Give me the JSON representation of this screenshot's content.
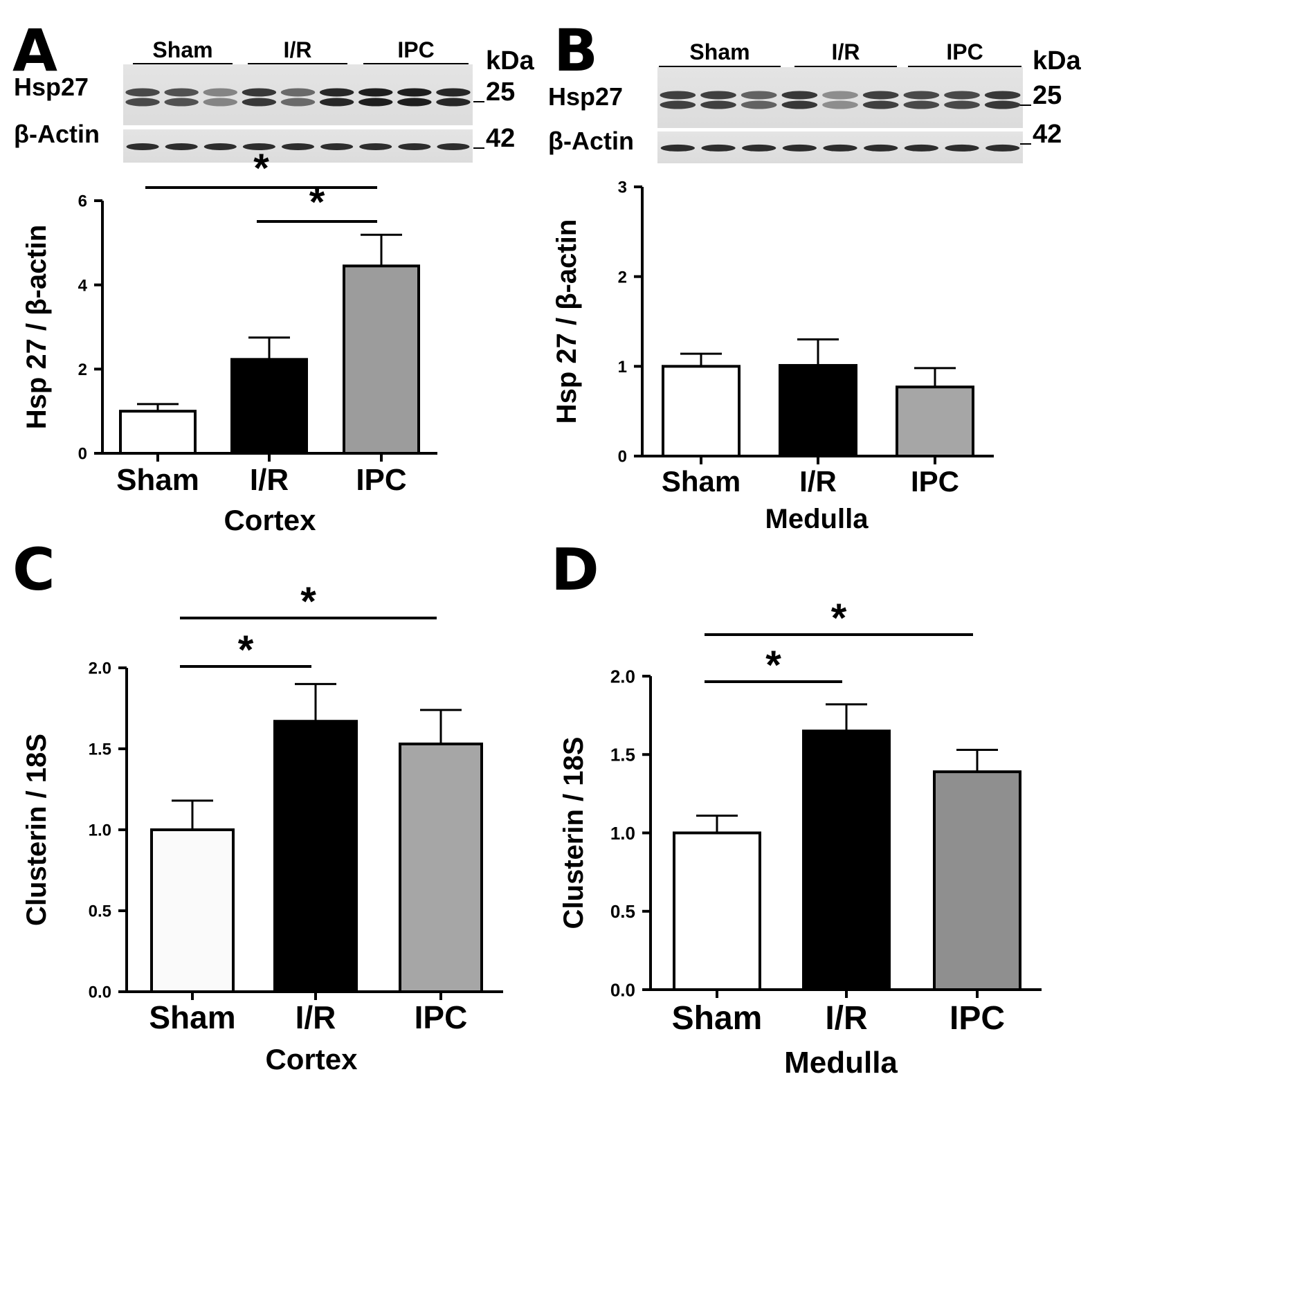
{
  "chart_data": [
    {
      "type": "bar",
      "panel": "A",
      "blot": {
        "groups": [
          "Sham",
          "I/R",
          "IPC"
        ],
        "bands": [
          {
            "label": "Hsp27",
            "kda": "25"
          },
          {
            "label": "β-Actin",
            "kda": "42"
          }
        ],
        "kda_label": "kDa"
      },
      "categories": [
        "Sham",
        "I/R",
        "IPC"
      ],
      "values": [
        1.0,
        2.23,
        4.45
      ],
      "errors": [
        0.17,
        0.52,
        0.74
      ],
      "colors": [
        "#ffffff",
        "#000000",
        "#9c9c9c"
      ],
      "ylabel": "Hsp 27 / β-actin",
      "xlabel": "Cortex",
      "ylim": [
        0,
        6
      ],
      "yticks": [
        "0",
        "2",
        "4",
        "6"
      ],
      "significance": [
        {
          "from": 0,
          "to": 2,
          "label": "*"
        },
        {
          "from": 1,
          "to": 2,
          "label": "*"
        }
      ]
    },
    {
      "type": "bar",
      "panel": "B",
      "blot": {
        "groups": [
          "Sham",
          "I/R",
          "IPC"
        ],
        "bands": [
          {
            "label": "Hsp27",
            "kda": "25"
          },
          {
            "label": "β-Actin",
            "kda": "42"
          }
        ],
        "kda_label": "kDa"
      },
      "categories": [
        "Sham",
        "I/R",
        "IPC"
      ],
      "values": [
        1.0,
        1.01,
        0.77
      ],
      "errors": [
        0.14,
        0.29,
        0.21
      ],
      "colors": [
        "#ffffff",
        "#000000",
        "#a6a6a6"
      ],
      "ylabel": "Hsp 27 / β-actin",
      "xlabel": "Medulla",
      "ylim": [
        0,
        3
      ],
      "yticks": [
        "0",
        "1",
        "2",
        "3"
      ],
      "significance": []
    },
    {
      "type": "bar",
      "panel": "C",
      "categories": [
        "Sham",
        "I/R",
        "IPC"
      ],
      "values": [
        1.0,
        1.67,
        1.53
      ],
      "errors": [
        0.18,
        0.23,
        0.21
      ],
      "colors": [
        "#fafafa",
        "#000000",
        "#a6a6a6"
      ],
      "ylabel": "Clusterin / 18S",
      "xlabel": "Cortex",
      "ylim": [
        0,
        2.0
      ],
      "yticks": [
        "0.0",
        "0.5",
        "1.0",
        "1.5",
        "2.0"
      ],
      "significance": [
        {
          "from": 0,
          "to": 1,
          "label": "*"
        },
        {
          "from": 0,
          "to": 2,
          "label": "*"
        }
      ]
    },
    {
      "type": "bar",
      "panel": "D",
      "categories": [
        "Sham",
        "I/R",
        "IPC"
      ],
      "values": [
        1.0,
        1.65,
        1.39
      ],
      "errors": [
        0.11,
        0.17,
        0.14
      ],
      "colors": [
        "#ffffff",
        "#000000",
        "#8f8f8f"
      ],
      "ylabel": "Clusterin / 18S",
      "xlabel": "Medulla",
      "ylim": [
        0,
        2.0
      ],
      "yticks": [
        "0.0",
        "0.5",
        "1.0",
        "1.5",
        "2.0"
      ],
      "significance": [
        {
          "from": 0,
          "to": 1,
          "label": "*"
        },
        {
          "from": 0,
          "to": 2,
          "label": "*"
        }
      ]
    }
  ]
}
